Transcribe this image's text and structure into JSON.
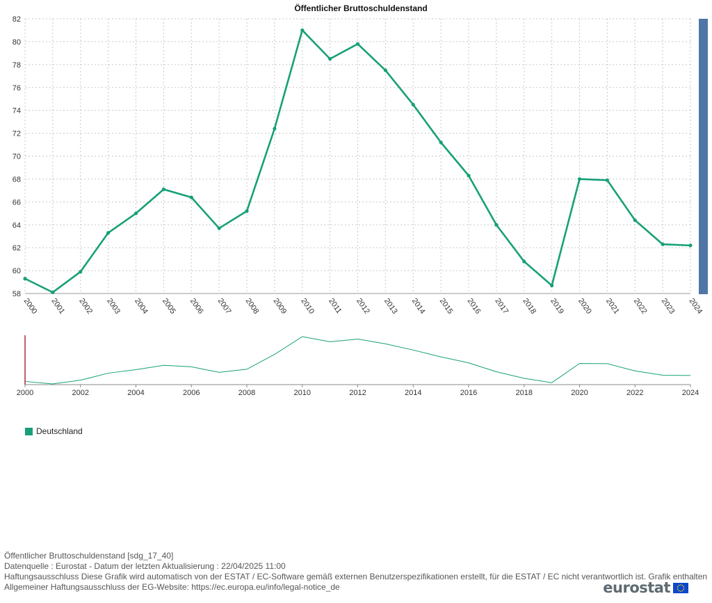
{
  "colors": {
    "series": "#17a078",
    "grid": "#c8c8c8",
    "scrollbar": "#4f76a6",
    "navigator_handle": "#b3273f",
    "logo_flag": "#0e47cb",
    "logo_stars": "#ffdd00"
  },
  "chart_data": {
    "type": "line",
    "title": "Öffentlicher Bruttoschuldenstand",
    "xlabel": "",
    "ylabel": "",
    "x": [
      "2000",
      "2001",
      "2002",
      "2003",
      "2004",
      "2005",
      "2006",
      "2007",
      "2008",
      "2009",
      "2010",
      "2011",
      "2012",
      "2013",
      "2014",
      "2015",
      "2016",
      "2017",
      "2018",
      "2019",
      "2020",
      "2021",
      "2022",
      "2023",
      "2024"
    ],
    "series": [
      {
        "name": "Deutschland",
        "values": [
          59.3,
          58.1,
          59.9,
          63.3,
          65.0,
          67.1,
          66.4,
          63.7,
          65.2,
          72.4,
          81.0,
          78.5,
          79.8,
          77.5,
          74.5,
          71.2,
          68.3,
          64.0,
          60.8,
          58.7,
          68.0,
          67.9,
          64.4,
          62.3,
          62.2
        ]
      }
    ],
    "ylim": [
      58,
      82
    ],
    "yticks": [
      "58",
      "60",
      "62",
      "64",
      "66",
      "68",
      "70",
      "72",
      "74",
      "76",
      "78",
      "80",
      "82"
    ],
    "grid": true,
    "legend": "bottom-left",
    "navigator_ticks": [
      "2000",
      "2002",
      "2004",
      "2006",
      "2008",
      "2010",
      "2012",
      "2014",
      "2016",
      "2018",
      "2020",
      "2022",
      "2024"
    ]
  },
  "footer": {
    "dataset": "Öffentlicher Bruttoschuldenstand [sdg_17_40]",
    "source": "Datenquelle : Eurostat - Datum der letzten Aktualisierung : 22/04/2025 11:00",
    "disclaimer": "Haftungsausschluss Diese Grafik wird automatisch von der ESTAT / EC-Software gemäß externen Benutzerspezifikationen erstellt, für die ESTAT / EC nicht verantwortlich ist. Grafik enthalten",
    "website": "Allgemeiner Haftungsausschluss der EG-Website: https://ec.europa.eu/info/legal-notice_de"
  },
  "logo": {
    "text": "eurostat"
  }
}
